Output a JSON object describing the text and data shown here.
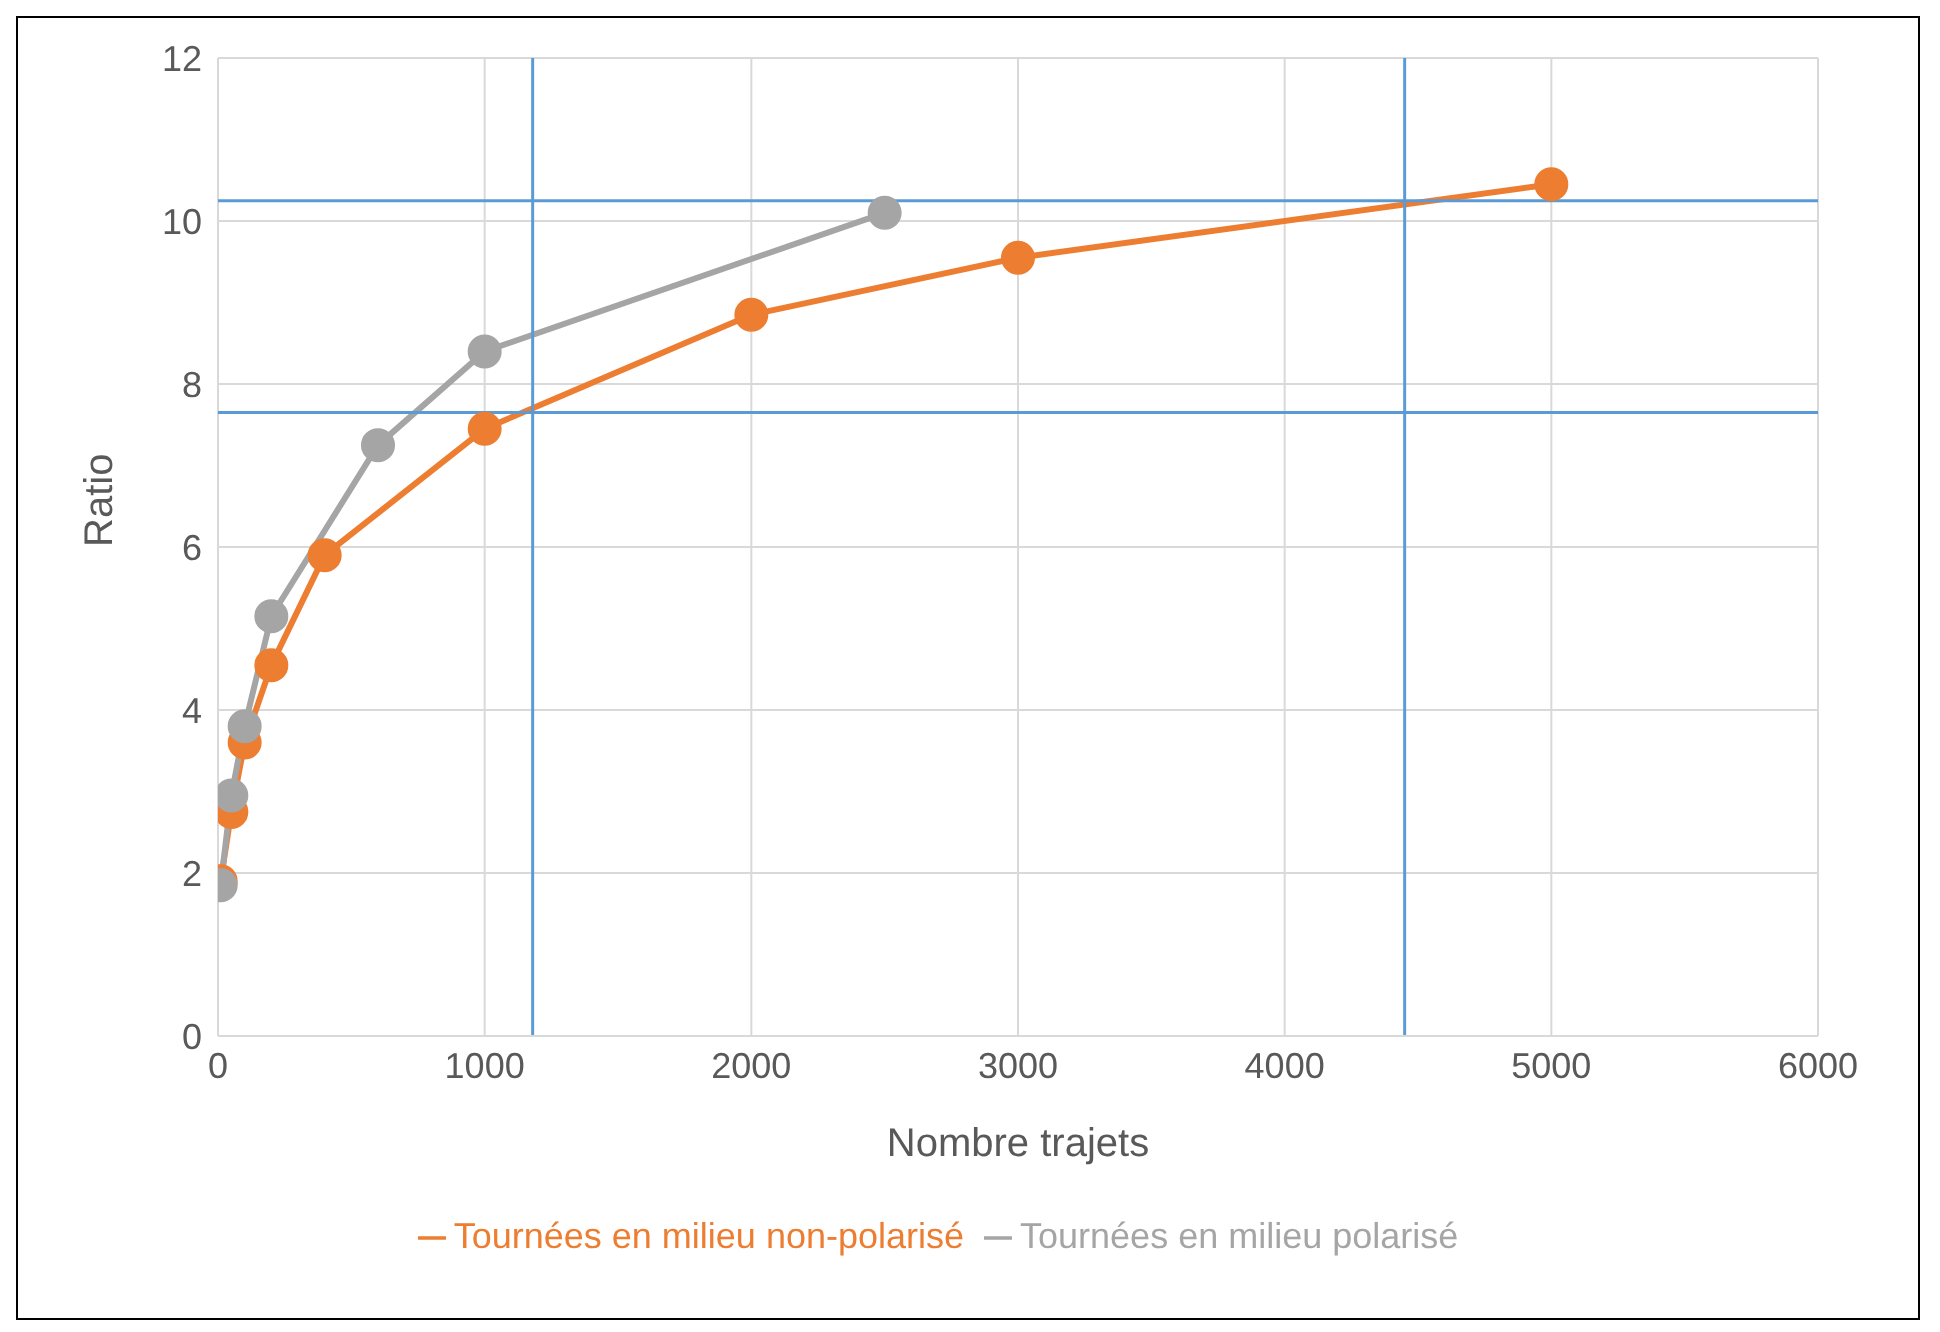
{
  "chart_data": {
    "type": "line",
    "xlabel": "Nombre trajets",
    "ylabel": "Ratio",
    "xlim": [
      0,
      6000
    ],
    "xticks": [
      0,
      1000,
      2000,
      3000,
      4000,
      5000,
      6000
    ],
    "ylim": [
      0,
      12
    ],
    "yticks": [
      0,
      2,
      4,
      6,
      8,
      10,
      12
    ],
    "grid": true,
    "legend": "bottom",
    "marker": "circle",
    "series": [
      {
        "name": "Tournées en milieu non-polarisé",
        "color": "#ed7d31",
        "x": [
          10,
          50,
          100,
          200,
          400,
          1000,
          2000,
          3000,
          5000
        ],
        "values": [
          1.9,
          2.75,
          3.6,
          4.55,
          5.9,
          7.45,
          8.85,
          9.55,
          10.45
        ]
      },
      {
        "name": "Tournées en milieu polarisé",
        "color": "#a5a5a5",
        "x": [
          10,
          50,
          100,
          200,
          600,
          1000,
          2500
        ],
        "values": [
          1.85,
          2.95,
          3.8,
          5.15,
          7.25,
          8.4,
          10.1
        ]
      }
    ],
    "ref_lines": [
      {
        "axis": "y",
        "value": 10.25,
        "color": "#5b9bd5"
      },
      {
        "axis": "x",
        "value": 4450,
        "color": "#5b9bd5"
      },
      {
        "axis": "y",
        "value": 7.65,
        "color": "#5b9bd5"
      },
      {
        "axis": "x",
        "value": 1180,
        "color": "#5b9bd5"
      }
    ]
  }
}
